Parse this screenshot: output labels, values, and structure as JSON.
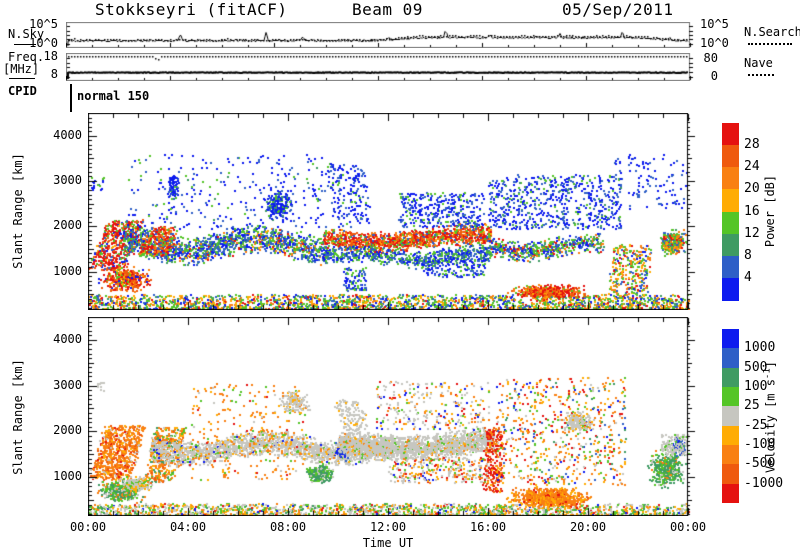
{
  "header": {
    "title": "Stokkseyri (fitACF)",
    "beam": "Beam 09",
    "date": "05/Sep/2011"
  },
  "labels": {
    "nsky": "N.Sky",
    "nsearch": "N.Search",
    "freq_line1": "Freq.",
    "freq_line2": "[MHz]",
    "nave": "Nave",
    "cpid": "CPID",
    "cpid_value": "normal 150",
    "noise_scale_top": "10^5",
    "noise_scale_bottom": "10^0",
    "freq_scale_top": "18",
    "freq_scale_bottom": "8",
    "nave_scale_top": "80",
    "nave_scale_bottom": "0",
    "xaxis_title": "Time UT",
    "yaxis_title": "Slant Range [km]"
  },
  "palette": {
    "red": "#e51210",
    "redorange": "#ef5a0e",
    "orange": "#f98012",
    "amber": "#ffac04",
    "green": "#54c527",
    "seagreen": "#3f9b63",
    "midblue": "#2e5fc7",
    "blue": "#0d1bef",
    "gray": "#c6c6c0"
  },
  "power_bar": {
    "title": "Power [dB]",
    "ticks": [
      "28",
      "24",
      "20",
      "16",
      "12",
      "8",
      "4"
    ],
    "colors": [
      "red",
      "redorange",
      "orange",
      "amber",
      "green",
      "seagreen",
      "midblue",
      "blue"
    ]
  },
  "velocity_bar": {
    "title_main": "Velocity [m s",
    "title_sup": "-1",
    "title_end": "]",
    "ticks": [
      "1000",
      "500",
      "100",
      "25",
      "-25",
      "-100",
      "-500",
      "-1000"
    ],
    "colors": [
      "blue",
      "midblue",
      "seagreen",
      "green",
      "gray",
      "amber",
      "orange",
      "redorange",
      "red"
    ]
  },
  "axes": {
    "x_labels": [
      "00:00",
      "04:00",
      "08:00",
      "12:00",
      "16:00",
      "20:00",
      "00:00"
    ],
    "y_ticks": [
      1000,
      2000,
      3000,
      4000
    ],
    "range_km": [
      150,
      4500
    ],
    "hours": [
      0,
      24
    ]
  },
  "chart_data": {
    "type": "rti-range-time-intensity",
    "station": "Stokkseyri",
    "beam": 9,
    "date": "05/Sep/2011",
    "noise": {
      "baseline": 0.3,
      "noise_amp": 0.05,
      "plateau": {
        "start": 13,
        "end": 22.3,
        "rise": 0.11
      },
      "spikes": [
        [
          4.4,
          0.26
        ],
        [
          7.7,
          0.32
        ],
        [
          9.1,
          0.12
        ],
        [
          12.4,
          0.1
        ],
        [
          14.6,
          0.3
        ],
        [
          16.3,
          0.12
        ],
        [
          19.0,
          0.16
        ],
        [
          21.4,
          0.24
        ],
        [
          23.2,
          0.1
        ]
      ],
      "search_offset": 0.03
    },
    "freq": {
      "freq_frac": 0.3,
      "nave_frac": 0.9,
      "dip_t": 3.5,
      "dip_depth": 0.14,
      "dip_halfwidth": 0.15
    },
    "power_clusters": [
      {
        "t": [
          0,
          24
        ],
        "r": [
          150,
          500
        ],
        "n": 2800,
        "shape": "floor",
        "colors": {
          "green": 0.28,
          "amber": 0.2,
          "orange": 0.13,
          "blue": 0.12,
          "midblue": 0.1,
          "seagreen": 0.09,
          "red": 0.08
        }
      },
      {
        "t": [
          0,
          1.4
        ],
        "r": [
          1050,
          2150
        ],
        "n": 520,
        "shape": "streaks",
        "slant": 0.8,
        "colors": {
          "red": 0.42,
          "redorange": 0.18,
          "amber": 0.08,
          "green": 0.14,
          "midblue": 0.1,
          "blue": 0.08
        }
      },
      {
        "t": [
          0.3,
          2.7
        ],
        "r": [
          520,
          1150
        ],
        "n": 480,
        "shape": "blob",
        "colors": {
          "red": 0.34,
          "redorange": 0.26,
          "orange": 0.14,
          "amber": 0.08,
          "green": 0.08,
          "blue": 0.1
        }
      },
      {
        "t": [
          1.4,
          9.6
        ],
        "r": [
          1250,
          1950
        ],
        "n": 1500,
        "shape": "band",
        "wave": [
          130,
          1.1,
          0.5
        ],
        "colors": {
          "midblue": 0.28,
          "blue": 0.2,
          "green": 0.24,
          "seagreen": 0.12,
          "orange": 0.08,
          "amber": 0.04,
          "red": 0.04
        }
      },
      {
        "t": [
          2.0,
          3.1
        ],
        "r": [
          1350,
          2000
        ],
        "n": 260,
        "shape": "streaks",
        "slant": 0.5,
        "colors": {
          "red": 0.3,
          "redorange": 0.2,
          "orange": 0.15,
          "green": 0.2,
          "midblue": 0.15
        }
      },
      {
        "t": [
          9.4,
          16.1
        ],
        "r": [
          1500,
          2000
        ],
        "n": 1250,
        "shape": "band",
        "wave": [
          90,
          0.8,
          1.8
        ],
        "colors": {
          "red": 0.36,
          "redorange": 0.22,
          "orange": 0.12,
          "amber": 0.08,
          "green": 0.12,
          "midblue": 0.1
        }
      },
      {
        "t": [
          9.4,
          16.1
        ],
        "r": [
          1150,
          1550
        ],
        "n": 650,
        "shape": "band",
        "wave": [
          80,
          1.3,
          0.2
        ],
        "colors": {
          "midblue": 0.32,
          "blue": 0.26,
          "green": 0.24,
          "seagreen": 0.18
        }
      },
      {
        "t": [
          16,
          20.6
        ],
        "r": [
          1300,
          1800
        ],
        "n": 550,
        "shape": "band",
        "wave": [
          90,
          1.2,
          2.6
        ],
        "colors": {
          "green": 0.26,
          "midblue": 0.24,
          "blue": 0.2,
          "orange": 0.12,
          "seagreen": 0.1,
          "red": 0.08
        }
      },
      {
        "t": [
          1.5,
          9.5
        ],
        "r": [
          1950,
          3600
        ],
        "n": 260,
        "shape": "scatter",
        "colors": {
          "blue": 0.6,
          "midblue": 0.25,
          "green": 0.1,
          "seagreen": 0.05
        }
      },
      {
        "t": [
          3.1,
          3.7
        ],
        "r": [
          2500,
          3250
        ],
        "n": 80,
        "shape": "blob",
        "colors": {
          "blue": 0.7,
          "midblue": 0.2,
          "green": 0.1
        }
      },
      {
        "t": [
          6.8,
          8.3
        ],
        "r": [
          2050,
          2950
        ],
        "n": 200,
        "shape": "blob",
        "colors": {
          "blue": 0.55,
          "midblue": 0.25,
          "green": 0.15,
          "seagreen": 0.05
        }
      },
      {
        "t": [
          9.8,
          11.3
        ],
        "r": [
          2000,
          3400
        ],
        "n": 190,
        "shape": "streaks",
        "slant": -0.3,
        "colors": {
          "blue": 0.6,
          "midblue": 0.3,
          "green": 0.1
        }
      },
      {
        "t": [
          12.4,
          15.8
        ],
        "r": [
          2000,
          2750
        ],
        "n": 340,
        "shape": "scatter",
        "colors": {
          "blue": 0.55,
          "midblue": 0.3,
          "green": 0.15
        }
      },
      {
        "t": [
          16,
          21.3
        ],
        "r": [
          1950,
          3150
        ],
        "n": 620,
        "shape": "scatter",
        "colors": {
          "blue": 0.5,
          "midblue": 0.3,
          "green": 0.12,
          "seagreen": 0.08
        }
      },
      {
        "t": [
          16.6,
          20.1
        ],
        "r": [
          380,
          760
        ],
        "n": 520,
        "shape": "blob",
        "colors": {
          "red": 0.34,
          "redorange": 0.3,
          "orange": 0.2,
          "amber": 0.1,
          "green": 0.06
        }
      },
      {
        "t": [
          20.8,
          22.3
        ],
        "r": [
          500,
          1600
        ],
        "n": 300,
        "shape": "streaks",
        "slant": 0.2,
        "colors": {
          "orange": 0.26,
          "green": 0.24,
          "amber": 0.14,
          "red": 0.12,
          "midblue": 0.12,
          "blue": 0.12
        }
      },
      {
        "t": [
          22.7,
          24
        ],
        "r": [
          1300,
          2000
        ],
        "n": 340,
        "shape": "blob",
        "colors": {
          "green": 0.28,
          "orange": 0.22,
          "seagreen": 0.14,
          "red": 0.12,
          "amber": 0.12,
          "midblue": 0.12
        }
      },
      {
        "t": [
          21,
          24
        ],
        "r": [
          2400,
          3600
        ],
        "n": 110,
        "shape": "scatter",
        "colors": {
          "blue": 0.7,
          "midblue": 0.3
        }
      },
      {
        "t": [
          0.1,
          0.7
        ],
        "r": [
          2800,
          3100
        ],
        "n": 18,
        "shape": "scatter",
        "colors": {
          "blue": 0.7,
          "green": 0.3
        }
      },
      {
        "t": [
          10.2,
          11.1
        ],
        "r": [
          600,
          1100
        ],
        "n": 90,
        "shape": "scatter",
        "colors": {
          "midblue": 0.4,
          "blue": 0.3,
          "green": 0.3
        }
      },
      {
        "t": [
          13.3,
          15.9
        ],
        "r": [
          900,
          1300
        ],
        "n": 160,
        "shape": "scatter",
        "colors": {
          "blue": 0.45,
          "midblue": 0.3,
          "green": 0.25
        }
      }
    ],
    "velocity_clusters": [
      {
        "t": [
          0,
          24
        ],
        "r": [
          150,
          430
        ],
        "n": 2400,
        "shape": "floor",
        "colors": {
          "gray": 0.34,
          "green": 0.2,
          "amber": 0.18,
          "orange": 0.12,
          "seagreen": 0.08,
          "red": 0.04,
          "blue": 0.04
        }
      },
      {
        "t": [
          0,
          1.6
        ],
        "r": [
          950,
          2150
        ],
        "n": 680,
        "shape": "streaks",
        "slant": 0.7,
        "colors": {
          "orange": 0.55,
          "redorange": 0.18,
          "amber": 0.15,
          "red": 0.06,
          "gray": 0.06
        }
      },
      {
        "t": [
          0.2,
          2.3
        ],
        "r": [
          430,
          1000
        ],
        "n": 420,
        "shape": "blob",
        "colors": {
          "seagreen": 0.4,
          "green": 0.3,
          "gray": 0.18,
          "orange": 0.12
        }
      },
      {
        "t": [
          1.1,
          2.7
        ],
        "r": [
          650,
          1080
        ],
        "n": 240,
        "shape": "blob",
        "colors": {
          "gray": 0.66,
          "green": 0.2,
          "amber": 0.14
        }
      },
      {
        "t": [
          2.2,
          3.4
        ],
        "r": [
          900,
          2100
        ],
        "n": 420,
        "shape": "streaks",
        "slant": 0.5,
        "colors": {
          "orange": 0.42,
          "redorange": 0.14,
          "amber": 0.12,
          "green": 0.12,
          "seagreen": 0.12,
          "gray": 0.08
        }
      },
      {
        "t": [
          2.5,
          12.2
        ],
        "r": [
          1350,
          1950
        ],
        "n": 2000,
        "shape": "band",
        "wave": [
          120,
          1.0,
          0.8
        ],
        "colors": {
          "gray": 0.8,
          "amber": 0.07,
          "orange": 0.05,
          "green": 0.05,
          "blue": 0.03
        }
      },
      {
        "t": [
          4,
          8.6
        ],
        "r": [
          950,
          3050
        ],
        "n": 280,
        "shape": "streaks",
        "slant": 0.1,
        "colors": {
          "orange": 0.48,
          "amber": 0.2,
          "red": 0.08,
          "green": 0.14,
          "gray": 0.1
        }
      },
      {
        "t": [
          7.4,
          9.1
        ],
        "r": [
          2350,
          2950
        ],
        "n": 130,
        "shape": "blob",
        "colors": {
          "gray": 0.84,
          "amber": 0.16
        }
      },
      {
        "t": [
          8.6,
          9.9
        ],
        "r": [
          820,
          1350
        ],
        "n": 260,
        "shape": "blob",
        "colors": {
          "seagreen": 0.6,
          "green": 0.3,
          "gray": 0.1
        }
      },
      {
        "t": [
          9.8,
          10.5
        ],
        "r": [
          1350,
          1850
        ],
        "n": 90,
        "shape": "blob",
        "colors": {
          "blue": 0.45,
          "midblue": 0.35,
          "gray": 0.2
        }
      },
      {
        "t": [
          10,
          16.2
        ],
        "r": [
          1450,
          2050
        ],
        "n": 1900,
        "shape": "band",
        "wave": [
          100,
          0.7,
          2.2
        ],
        "colors": {
          "gray": 0.86,
          "amber": 0.05,
          "orange": 0.04,
          "green": 0.05
        }
      },
      {
        "t": [
          11.5,
          16
        ],
        "r": [
          2050,
          3100
        ],
        "n": 280,
        "shape": "scatter",
        "colors": {
          "gray": 0.46,
          "orange": 0.16,
          "amber": 0.12,
          "red": 0.08,
          "blue": 0.1,
          "green": 0.08
        }
      },
      {
        "t": [
          12,
          16
        ],
        "r": [
          900,
          1450
        ],
        "n": 320,
        "shape": "scatter",
        "colors": {
          "gray": 0.4,
          "orange": 0.2,
          "amber": 0.15,
          "green": 0.1,
          "red": 0.08,
          "blue": 0.07
        }
      },
      {
        "t": [
          15.8,
          16.5
        ],
        "r": [
          700,
          2100
        ],
        "n": 250,
        "shape": "streaks",
        "slant": 0.1,
        "colors": {
          "red": 0.44,
          "redorange": 0.3,
          "orange": 0.2,
          "amber": 0.06
        }
      },
      {
        "t": [
          16.5,
          20.3
        ],
        "r": [
          300,
          820
        ],
        "n": 850,
        "shape": "blob",
        "colors": {
          "orange": 0.6,
          "amber": 0.26,
          "redorange": 0.09,
          "red": 0.05
        }
      },
      {
        "t": [
          16.3,
          21.5
        ],
        "r": [
          850,
          3200
        ],
        "n": 650,
        "shape": "scatter",
        "colors": {
          "orange": 0.28,
          "red": 0.14,
          "amber": 0.16,
          "green": 0.12,
          "gray": 0.1,
          "blue": 0.08,
          "seagreen": 0.06,
          "midblue": 0.06
        }
      },
      {
        "t": [
          18.8,
          20.3
        ],
        "r": [
          1950,
          2520
        ],
        "n": 230,
        "shape": "blob",
        "colors": {
          "gray": 0.8,
          "amber": 0.1,
          "green": 0.1
        }
      },
      {
        "t": [
          22.2,
          24
        ],
        "r": [
          700,
          1700
        ],
        "n": 420,
        "shape": "blob",
        "colors": {
          "seagreen": 0.54,
          "green": 0.26,
          "gray": 0.1,
          "orange": 0.1
        }
      },
      {
        "t": [
          23.2,
          24
        ],
        "r": [
          1450,
          1950
        ],
        "n": 120,
        "shape": "blob",
        "colors": {
          "midblue": 0.5,
          "blue": 0.3,
          "seagreen": 0.2
        }
      },
      {
        "t": [
          22.9,
          24
        ],
        "r": [
          1500,
          1950
        ],
        "n": 140,
        "shape": "scatter",
        "colors": {
          "gray": 0.78,
          "green": 0.22
        }
      },
      {
        "t": [
          0.3,
          0.6
        ],
        "r": [
          2900,
          3100
        ],
        "n": 10,
        "shape": "scatter",
        "colors": {
          "gray": 1
        }
      },
      {
        "t": [
          10.4,
          11.4
        ],
        "r": [
          1800,
          2700
        ],
        "n": 160,
        "shape": "streaks",
        "slant": -0.6,
        "colors": {
          "gray": 0.9,
          "amber": 0.1
        }
      }
    ]
  }
}
